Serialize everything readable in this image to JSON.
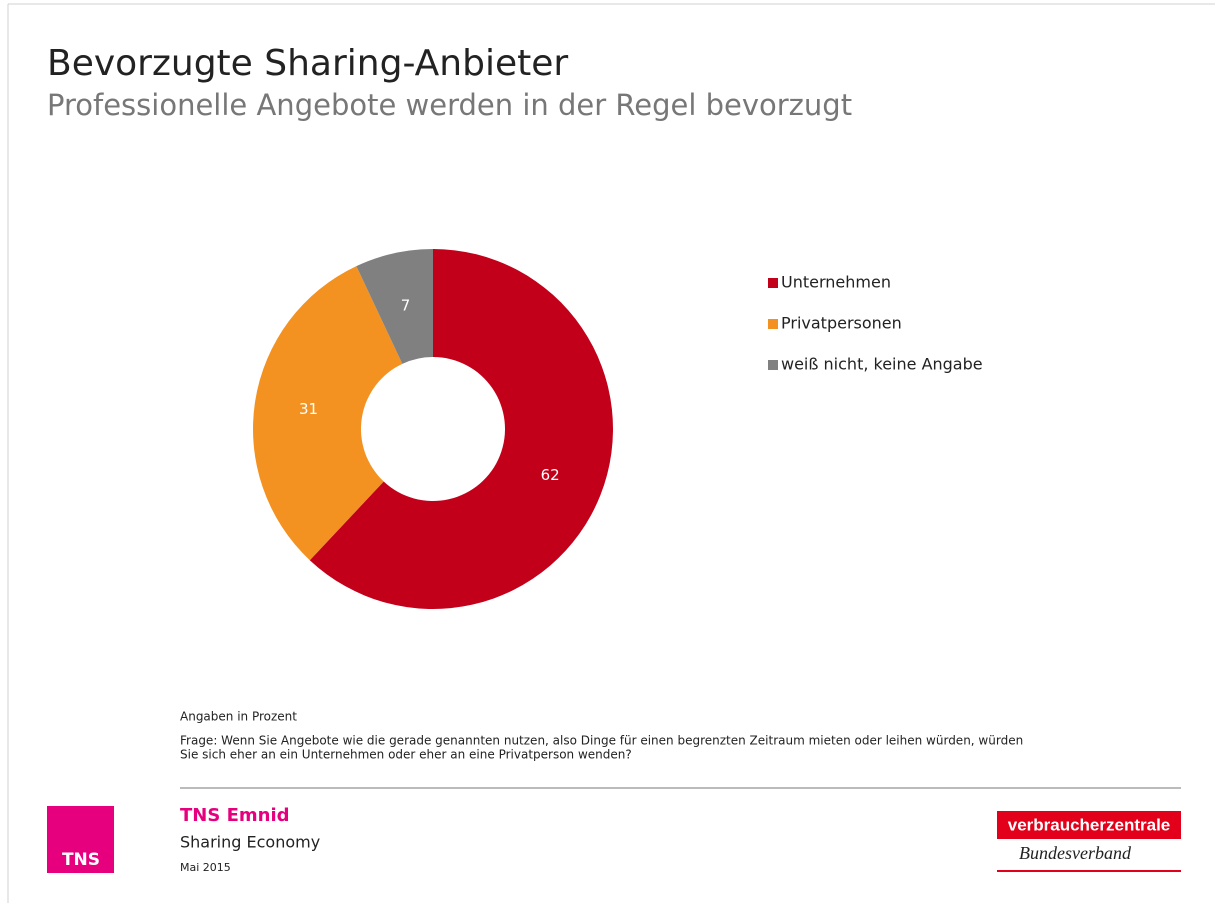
{
  "chart_data": {
    "type": "donut",
    "title": "Bevorzugte Sharing-Anbieter",
    "subtitle": "Professionelle Angebote werden in der Regel bevorzugt",
    "categories": [
      "Unternehmen",
      "Privatpersonen",
      "weiß nicht, keine Angabe"
    ],
    "values": [
      62,
      31,
      7
    ],
    "colors": [
      "#c3001a",
      "#f39220",
      "#808080"
    ],
    "legend": "right"
  },
  "notes": {
    "unit": "Angaben in Prozent",
    "question": [
      "Frage: Wenn Sie Angebote wie die gerade genannten nutzen, also Dinge für einen begrenzten Zeitraum mieten oder leihen würden, würden",
      "Sie sich eher an ein Unternehmen oder eher an eine Privatperson wenden?"
    ]
  },
  "footer": {
    "logo": "TNS",
    "company": "TNS Emnid",
    "study": "Sharing Economy",
    "date": "Mai 2015",
    "partner": "verbraucherzentrale",
    "partner_sub": "Bundesverband"
  }
}
